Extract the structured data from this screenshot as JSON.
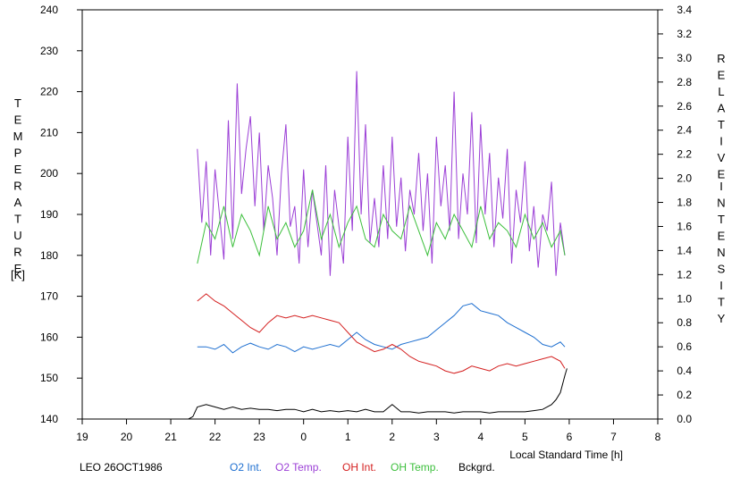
{
  "chart_data": {
    "type": "line",
    "xlabel": "Local Standard Time [h]",
    "ylabel_left": "TEMPERATURE [K]",
    "ylabel_right": "RELATIVE INTENSITY",
    "caption": "LEO 26OCT1986",
    "x_ticks": [
      "19",
      "20",
      "21",
      "22",
      "23",
      "0",
      "1",
      "2",
      "3",
      "4",
      "5",
      "6",
      "7",
      "8"
    ],
    "xlim": [
      19,
      32
    ],
    "ylim_left": [
      140,
      240
    ],
    "y_ticks_left": [
      "140",
      "150",
      "160",
      "170",
      "180",
      "190",
      "200",
      "210",
      "220",
      "230",
      "240"
    ],
    "ylim_right": [
      0.0,
      3.4
    ],
    "y_ticks_right": [
      "0.0",
      "0.2",
      "0.4",
      "0.6",
      "0.8",
      "1.0",
      "1.2",
      "1.4",
      "1.6",
      "1.8",
      "2.0",
      "2.2",
      "2.4",
      "2.6",
      "2.8",
      "3.0",
      "3.2",
      "3.4"
    ],
    "grid": false,
    "legend_position": "bottom",
    "series": [
      {
        "name": "O2 Int.",
        "axis": "right",
        "color": "#1e6fd0",
        "x": [
          21.6,
          21.8,
          22.0,
          22.2,
          22.4,
          22.6,
          22.8,
          23.0,
          23.2,
          23.4,
          23.6,
          23.8,
          24.0,
          24.2,
          24.4,
          24.6,
          24.8,
          25.0,
          25.2,
          25.4,
          25.6,
          25.8,
          26.0,
          26.2,
          26.4,
          26.6,
          26.8,
          27.0,
          27.2,
          27.4,
          27.6,
          27.8,
          28.0,
          28.2,
          28.4,
          28.6,
          28.8,
          29.0,
          29.2,
          29.4,
          29.6,
          29.8,
          29.9
        ],
        "y": [
          0.6,
          0.6,
          0.58,
          0.62,
          0.55,
          0.6,
          0.63,
          0.6,
          0.58,
          0.62,
          0.6,
          0.56,
          0.6,
          0.58,
          0.6,
          0.62,
          0.6,
          0.66,
          0.72,
          0.66,
          0.62,
          0.6,
          0.58,
          0.62,
          0.64,
          0.66,
          0.68,
          0.74,
          0.8,
          0.86,
          0.94,
          0.96,
          0.9,
          0.88,
          0.86,
          0.8,
          0.76,
          0.72,
          0.68,
          0.62,
          0.6,
          0.64,
          0.6
        ]
      },
      {
        "name": "O2 Temp.",
        "axis": "left",
        "color": "#9b3fd6",
        "x": [
          21.6,
          21.7,
          21.8,
          21.9,
          22.0,
          22.1,
          22.2,
          22.3,
          22.4,
          22.5,
          22.6,
          22.7,
          22.8,
          22.9,
          23.0,
          23.1,
          23.2,
          23.3,
          23.4,
          23.5,
          23.6,
          23.7,
          23.8,
          23.9,
          24.0,
          24.1,
          24.2,
          24.3,
          24.4,
          24.5,
          24.6,
          24.7,
          24.8,
          24.9,
          25.0,
          25.1,
          25.2,
          25.3,
          25.4,
          25.5,
          25.6,
          25.7,
          25.8,
          25.9,
          26.0,
          26.1,
          26.2,
          26.3,
          26.4,
          26.5,
          26.6,
          26.7,
          26.8,
          26.9,
          27.0,
          27.1,
          27.2,
          27.3,
          27.4,
          27.5,
          27.6,
          27.7,
          27.8,
          27.9,
          28.0,
          28.1,
          28.2,
          28.3,
          28.4,
          28.5,
          28.6,
          28.7,
          28.8,
          28.9,
          29.0,
          29.1,
          29.2,
          29.3,
          29.4,
          29.5,
          29.6,
          29.7,
          29.8,
          29.9
        ],
        "y": [
          206,
          188,
          203,
          180,
          201,
          190,
          179,
          213,
          184,
          222,
          195,
          206,
          214,
          192,
          210,
          186,
          202,
          194,
          180,
          200,
          212,
          187,
          192,
          178,
          201,
          182,
          196,
          188,
          180,
          202,
          175,
          196,
          187,
          178,
          209,
          186,
          225,
          190,
          212,
          183,
          194,
          182,
          202,
          184,
          209,
          187,
          199,
          181,
          196,
          190,
          205,
          186,
          200,
          178,
          209,
          192,
          202,
          186,
          220,
          184,
          200,
          190,
          215,
          183,
          212,
          190,
          205,
          182,
          199,
          189,
          206,
          178,
          196,
          188,
          203,
          181,
          192,
          177,
          190,
          186,
          198,
          175,
          188,
          180
        ]
      },
      {
        "name": "OH Int.",
        "axis": "right",
        "color": "#d41f1f",
        "x": [
          21.6,
          21.8,
          22.0,
          22.2,
          22.4,
          22.6,
          22.8,
          23.0,
          23.2,
          23.4,
          23.6,
          23.8,
          24.0,
          24.2,
          24.4,
          24.6,
          24.8,
          25.0,
          25.2,
          25.4,
          25.6,
          25.8,
          26.0,
          26.2,
          26.4,
          26.6,
          26.8,
          27.0,
          27.2,
          27.4,
          27.6,
          27.8,
          28.0,
          28.2,
          28.4,
          28.6,
          28.8,
          29.0,
          29.2,
          29.4,
          29.6,
          29.8,
          29.9
        ],
        "y": [
          0.98,
          1.04,
          0.98,
          0.94,
          0.88,
          0.82,
          0.76,
          0.72,
          0.8,
          0.86,
          0.84,
          0.86,
          0.84,
          0.86,
          0.84,
          0.82,
          0.8,
          0.72,
          0.64,
          0.6,
          0.56,
          0.58,
          0.62,
          0.58,
          0.52,
          0.48,
          0.46,
          0.44,
          0.4,
          0.38,
          0.4,
          0.44,
          0.42,
          0.4,
          0.44,
          0.46,
          0.44,
          0.46,
          0.48,
          0.5,
          0.52,
          0.48,
          0.42
        ]
      },
      {
        "name": "OH Temp.",
        "axis": "left",
        "color": "#3cbf3c",
        "x": [
          21.6,
          21.8,
          22.0,
          22.2,
          22.4,
          22.6,
          22.8,
          23.0,
          23.2,
          23.4,
          23.6,
          23.8,
          24.0,
          24.2,
          24.4,
          24.6,
          24.8,
          25.0,
          25.2,
          25.4,
          25.6,
          25.8,
          26.0,
          26.2,
          26.4,
          26.6,
          26.8,
          27.0,
          27.2,
          27.4,
          27.6,
          27.8,
          28.0,
          28.2,
          28.4,
          28.6,
          28.8,
          29.0,
          29.2,
          29.4,
          29.6,
          29.8,
          29.9
        ],
        "y": [
          178,
          188,
          184,
          192,
          182,
          190,
          186,
          180,
          192,
          184,
          188,
          182,
          186,
          196,
          184,
          190,
          182,
          188,
          192,
          184,
          182,
          190,
          186,
          184,
          192,
          186,
          180,
          188,
          184,
          190,
          186,
          182,
          192,
          184,
          188,
          186,
          182,
          190,
          184,
          188,
          182,
          186,
          180
        ]
      },
      {
        "name": "Bckgrd.",
        "axis": "right",
        "color": "#000000",
        "x": [
          21.4,
          21.5,
          21.6,
          21.8,
          22.0,
          22.2,
          22.4,
          22.6,
          22.8,
          23.0,
          23.2,
          23.4,
          23.6,
          23.8,
          24.0,
          24.2,
          24.4,
          24.6,
          24.8,
          25.0,
          25.2,
          25.4,
          25.6,
          25.8,
          26.0,
          26.2,
          26.4,
          26.6,
          26.8,
          27.0,
          27.2,
          27.4,
          27.6,
          27.8,
          28.0,
          28.2,
          28.4,
          28.6,
          28.8,
          29.0,
          29.2,
          29.4,
          29.6,
          29.7,
          29.8,
          29.9,
          29.95
        ],
        "y": [
          0.0,
          0.02,
          0.1,
          0.12,
          0.1,
          0.08,
          0.1,
          0.08,
          0.09,
          0.08,
          0.08,
          0.07,
          0.08,
          0.08,
          0.06,
          0.08,
          0.06,
          0.07,
          0.06,
          0.07,
          0.06,
          0.08,
          0.06,
          0.06,
          0.12,
          0.06,
          0.06,
          0.05,
          0.06,
          0.06,
          0.06,
          0.05,
          0.06,
          0.06,
          0.06,
          0.05,
          0.06,
          0.06,
          0.06,
          0.06,
          0.07,
          0.08,
          0.12,
          0.16,
          0.22,
          0.36,
          0.42
        ]
      }
    ]
  }
}
